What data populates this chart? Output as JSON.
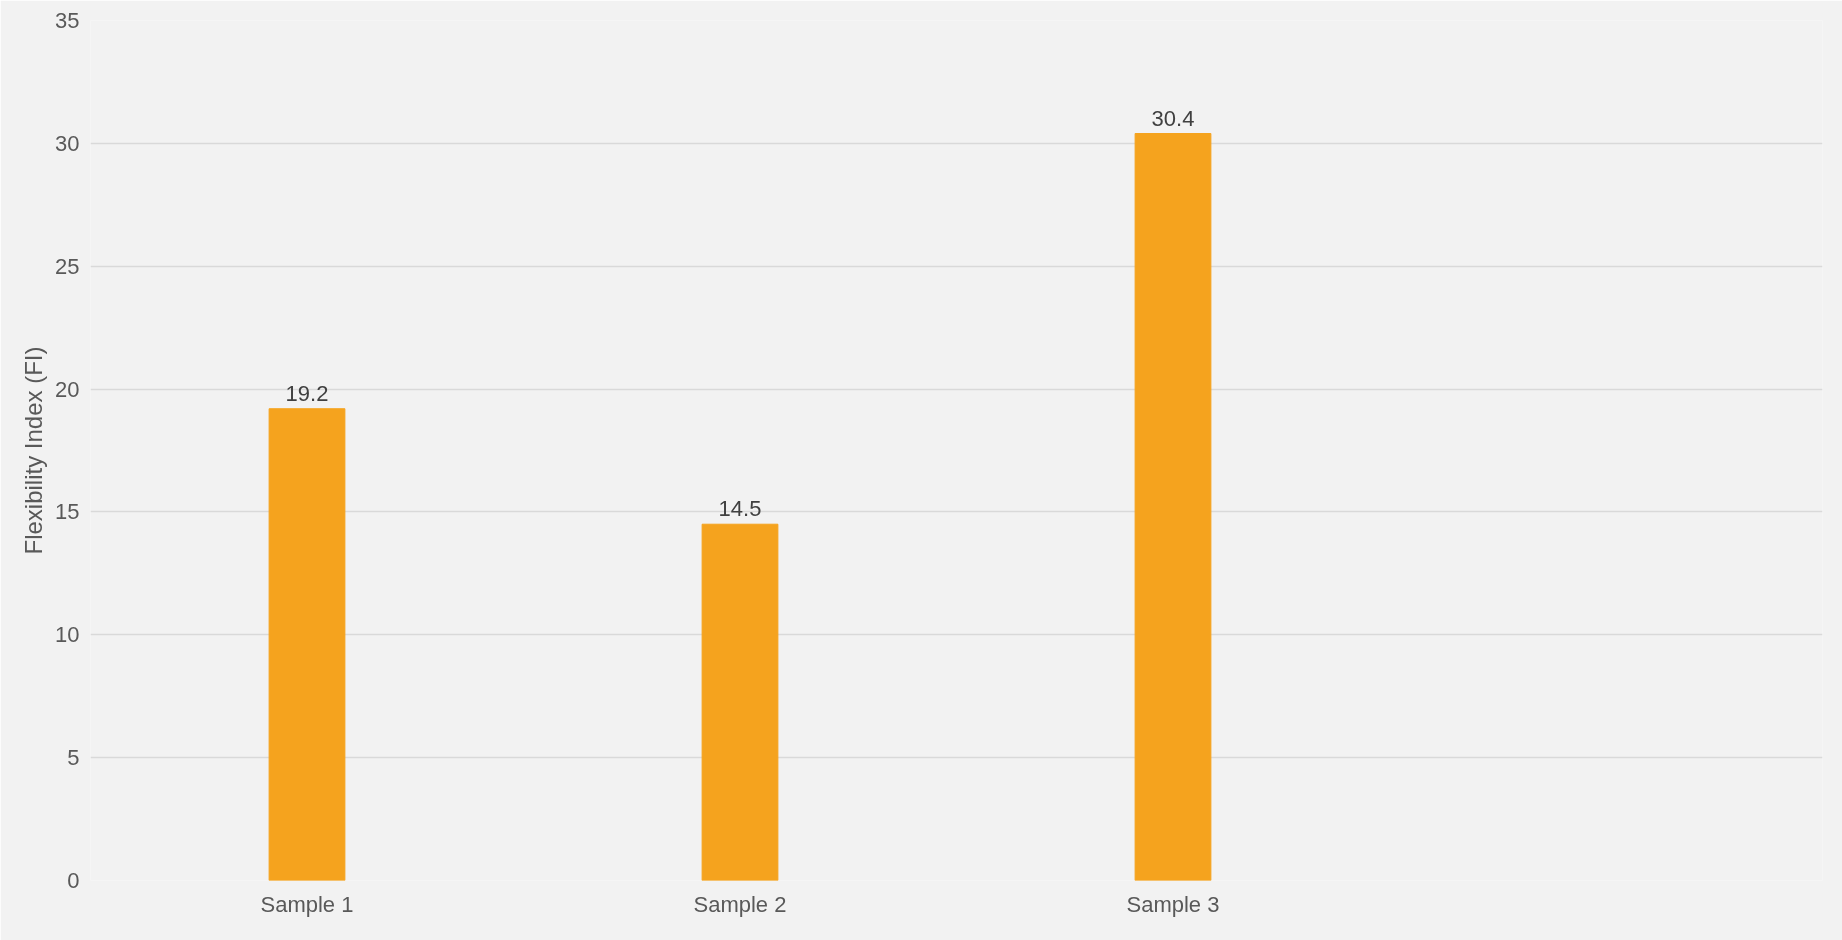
{
  "chart_data": {
    "type": "bar",
    "ylabel": "Flexibility Index (FI)",
    "categories": [
      "Sample 1",
      "Sample 2",
      "Sample 3",
      null
    ],
    "values": [
      19.2,
      14.5,
      30.4,
      null
    ],
    "color": "#f5a31e",
    "ylim": [
      0,
      35
    ],
    "yticks": [
      0,
      5,
      10,
      15,
      20,
      25,
      30,
      35
    ],
    "grid": "y",
    "data_labels": true
  }
}
